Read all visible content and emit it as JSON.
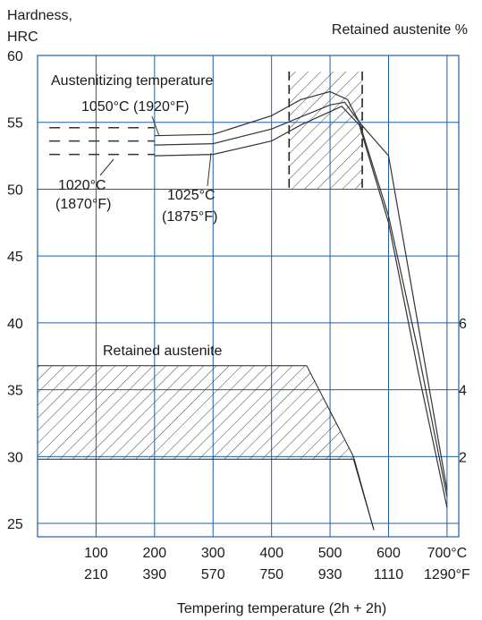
{
  "chart_data": {
    "type": "line",
    "title": "",
    "ylabel_left": [
      "Hardness,",
      "HRC"
    ],
    "ylabel_right": "Retained austenite %",
    "xlabel": "Tempering temperature (2h + 2h)",
    "xlim": [
      0,
      720
    ],
    "ylim": [
      24,
      60
    ],
    "x_ticks_c": [
      {
        "value": 100,
        "label": "100"
      },
      {
        "value": 200,
        "label": "200"
      },
      {
        "value": 300,
        "label": "300"
      },
      {
        "value": 400,
        "label": "400"
      },
      {
        "value": 500,
        "label": "500"
      },
      {
        "value": 600,
        "label": "600"
      },
      {
        "value": 700,
        "label": "700°C"
      }
    ],
    "x_ticks_f": [
      {
        "value": 100,
        "label": "210"
      },
      {
        "value": 200,
        "label": "390"
      },
      {
        "value": 300,
        "label": "570"
      },
      {
        "value": 400,
        "label": "750"
      },
      {
        "value": 500,
        "label": "930"
      },
      {
        "value": 600,
        "label": "1110"
      },
      {
        "value": 700,
        "label": "1290°F"
      }
    ],
    "y_ticks": [
      {
        "value": 25,
        "label": "25"
      },
      {
        "value": 30,
        "label": "30"
      },
      {
        "value": 35,
        "label": "35"
      },
      {
        "value": 40,
        "label": "40"
      },
      {
        "value": 45,
        "label": "45"
      },
      {
        "value": 50,
        "label": "50"
      },
      {
        "value": 55,
        "label": "55"
      },
      {
        "value": 60,
        "label": "60"
      }
    ],
    "right_ticks": [
      {
        "value": 30,
        "label": "2"
      },
      {
        "value": 35,
        "label": "4"
      },
      {
        "value": 40,
        "label": "6"
      }
    ],
    "series": [
      {
        "name": "1050°C (1920°F)",
        "label_lines": [
          "1050°C (1920°F)"
        ],
        "dashed": {
          "x": [
            20,
            200
          ],
          "y": [
            54.6,
            54.6
          ]
        },
        "solid": {
          "x": [
            200,
            300,
            400,
            450,
            500,
            530,
            550,
            600,
            650,
            700
          ],
          "y": [
            54.0,
            54.1,
            55.5,
            56.7,
            57.3,
            56.7,
            55.0,
            52.5,
            40.0,
            27.5
          ]
        }
      },
      {
        "name": "1025°C (1875°F)",
        "label_lines": [
          "1025°C",
          "(1875°F)"
        ],
        "dashed": {
          "x": [
            20,
            200
          ],
          "y": [
            53.6,
            53.6
          ]
        },
        "solid": {
          "x": [
            200,
            300,
            400,
            450,
            500,
            525,
            550,
            600,
            650,
            700
          ],
          "y": [
            53.3,
            53.4,
            54.5,
            55.4,
            56.3,
            56.5,
            55.0,
            48.0,
            38.0,
            27.0
          ]
        }
      },
      {
        "name": "1020°C (1870°F)",
        "label_lines": [
          "1020°C",
          "(1870°F)"
        ],
        "dashed": {
          "x": [
            20,
            200
          ],
          "y": [
            52.6,
            52.6
          ]
        },
        "solid": {
          "x": [
            200,
            300,
            400,
            450,
            500,
            520,
            550,
            600,
            650,
            700
          ],
          "y": [
            52.5,
            52.6,
            53.6,
            54.8,
            55.8,
            56.2,
            54.8,
            47.5,
            36.5,
            26.2
          ]
        }
      }
    ],
    "retained_austenite_band": {
      "label": "Retained austenite",
      "x": [
        0,
        460,
        540,
        575
      ],
      "upper_y": [
        36.8,
        36.8,
        30.0,
        24.5
      ],
      "lower_y": [
        29.8,
        29.8,
        29.8,
        24.5
      ]
    },
    "secondary_hardness_region": {
      "x_range": [
        430,
        555
      ],
      "y_range": [
        50.0,
        58.8
      ]
    },
    "annotations": {
      "austenitizing": "Austenitizing temperature"
    },
    "grid": true
  }
}
